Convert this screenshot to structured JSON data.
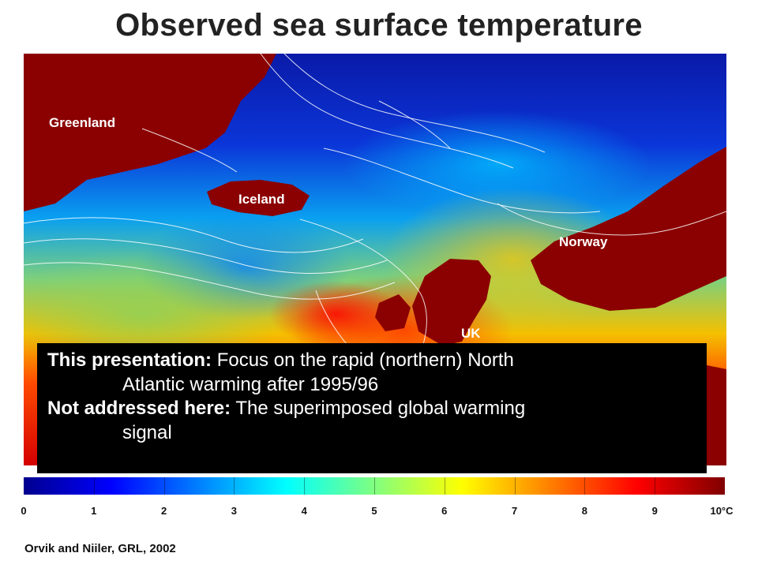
{
  "title": "Observed sea surface temperature",
  "map": {
    "labels": {
      "greenland": "Greenland",
      "iceland": "Iceland",
      "norway": "Norway",
      "uk": "UK"
    },
    "land_color": "#8b0000",
    "contour_color": "#ffffff"
  },
  "textbox": {
    "line1_bold": "This presentation:",
    "line1_text": " Focus on the rapid (northern) North",
    "line2_text": "Atlantic warming after 1995/96",
    "line3_bold": "Not addressed here:",
    "line3_text": " The superimposed global warming",
    "line4_text": "signal"
  },
  "colorbar": {
    "ticks": [
      "0",
      "1",
      "2",
      "3",
      "4",
      "5",
      "6",
      "7",
      "8",
      "9",
      "10°C"
    ],
    "colors": [
      "#00008f",
      "#0000ff",
      "#0080ff",
      "#00ffff",
      "#80ff80",
      "#ffff00",
      "#ff8000",
      "#ff0000",
      "#800000"
    ]
  },
  "citation": "Orvik and Niiler, GRL, 2002"
}
